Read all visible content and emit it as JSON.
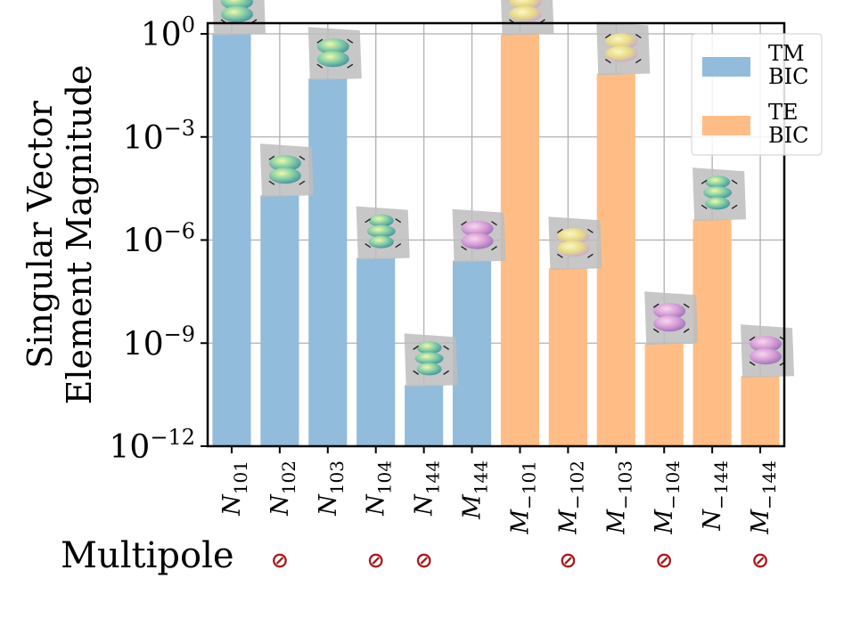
{
  "chart_data": {
    "type": "bar",
    "log_scale": true,
    "ylabel_line1": "Singular Vector",
    "ylabel_line2": "Element Magnitude",
    "xlabel": "Multipole",
    "ylim": [
      1e-12,
      1
    ],
    "y_ticks": [
      {
        "value": 1,
        "base": "10",
        "exp": "0"
      },
      {
        "value": 0.001,
        "base": "10",
        "exp": "−3"
      },
      {
        "value": 1e-06,
        "base": "10",
        "exp": "−6"
      },
      {
        "value": 1e-09,
        "base": "10",
        "exp": "−9"
      },
      {
        "value": 1e-12,
        "base": "10",
        "exp": "−12"
      }
    ],
    "grid": true,
    "legend_position": "top-right",
    "series": [
      {
        "name": "TM BIC",
        "legend_line1": "TM",
        "legend_line2": "BIC",
        "color": "#91bcdb"
      },
      {
        "name": "TE BIC",
        "legend_line1": "TE",
        "legend_line2": "BIC",
        "color": "#ffbd85"
      }
    ],
    "bars": [
      {
        "letter": "N",
        "sub": "101",
        "value": 1.0,
        "series": 0,
        "forbidden": false,
        "color": "green"
      },
      {
        "letter": "N",
        "sub": "102",
        "value": 2e-05,
        "series": 0,
        "forbidden": true,
        "color": "green"
      },
      {
        "letter": "N",
        "sub": "103",
        "value": 0.05,
        "series": 0,
        "forbidden": false,
        "color": "green"
      },
      {
        "letter": "N",
        "sub": "104",
        "value": 3e-07,
        "series": 0,
        "forbidden": true,
        "color": "green"
      },
      {
        "letter": "N",
        "sub": "144",
        "value": 6e-11,
        "series": 0,
        "forbidden": true,
        "color": "green"
      },
      {
        "letter": "M",
        "sub": "144",
        "value": 2.5e-07,
        "series": 0,
        "forbidden": false,
        "color": "magenta"
      },
      {
        "letter": "M",
        "sub": "−101",
        "value": 1.0,
        "series": 1,
        "forbidden": false,
        "color": "yellow"
      },
      {
        "letter": "M",
        "sub": "−102",
        "value": 1.5e-07,
        "series": 1,
        "forbidden": true,
        "color": "yellow"
      },
      {
        "letter": "M",
        "sub": "−103",
        "value": 0.07,
        "series": 1,
        "forbidden": false,
        "color": "yellow"
      },
      {
        "letter": "M",
        "sub": "−104",
        "value": 1e-09,
        "series": 1,
        "forbidden": true,
        "color": "magenta"
      },
      {
        "letter": "N",
        "sub": "−144",
        "value": 4e-06,
        "series": 1,
        "forbidden": false,
        "color": "green"
      },
      {
        "letter": "M",
        "sub": "−144",
        "value": 1.1e-10,
        "series": 1,
        "forbidden": true,
        "color": "magenta"
      }
    ],
    "forbidden_symbol": "⊘",
    "forbidden_color": "#aa1a1a"
  }
}
